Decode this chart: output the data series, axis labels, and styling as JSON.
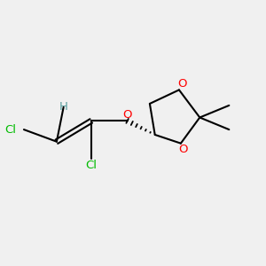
{
  "background_color": "#f0f0f0",
  "atom_colors": {
    "C": "#000000",
    "H": "#5aa0a0",
    "O": "#ff0000",
    "Cl": "#00bb00"
  },
  "figsize": [
    3.0,
    3.0
  ],
  "dpi": 100
}
